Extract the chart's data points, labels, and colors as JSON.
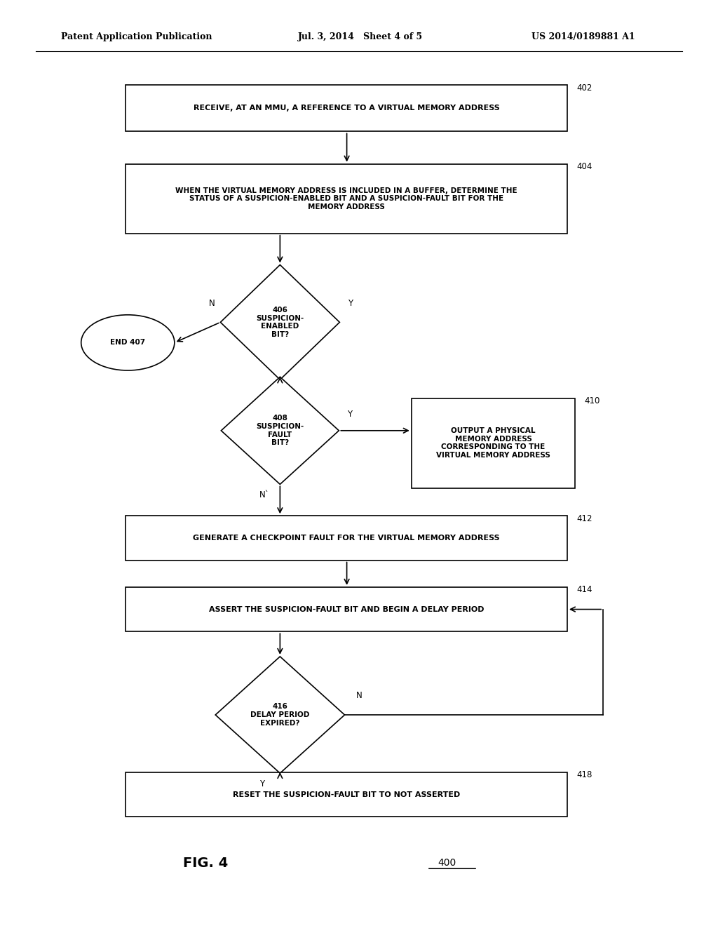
{
  "bg_color": "#ffffff",
  "header_left": "Patent Application Publication",
  "header_mid": "Jul. 3, 2014   Sheet 4 of 5",
  "header_right": "US 2014/0189881 A1",
  "fig_label": "FIG. 4",
  "fig_num": "400",
  "lw": 1.2,
  "b402": [
    0.175,
    0.858,
    0.615,
    0.05
  ],
  "b404": [
    0.175,
    0.748,
    0.615,
    0.075
  ],
  "d406": [
    0.39,
    0.652,
    0.083,
    0.062
  ],
  "oval407": [
    0.178,
    0.63,
    0.065,
    0.03
  ],
  "d408": [
    0.39,
    0.535,
    0.082,
    0.058
  ],
  "b410": [
    0.573,
    0.473,
    0.228,
    0.097
  ],
  "b412": [
    0.175,
    0.395,
    0.615,
    0.048
  ],
  "b414": [
    0.175,
    0.318,
    0.615,
    0.048
  ],
  "d416": [
    0.39,
    0.228,
    0.09,
    0.063
  ],
  "b418": [
    0.175,
    0.118,
    0.615,
    0.048
  ]
}
